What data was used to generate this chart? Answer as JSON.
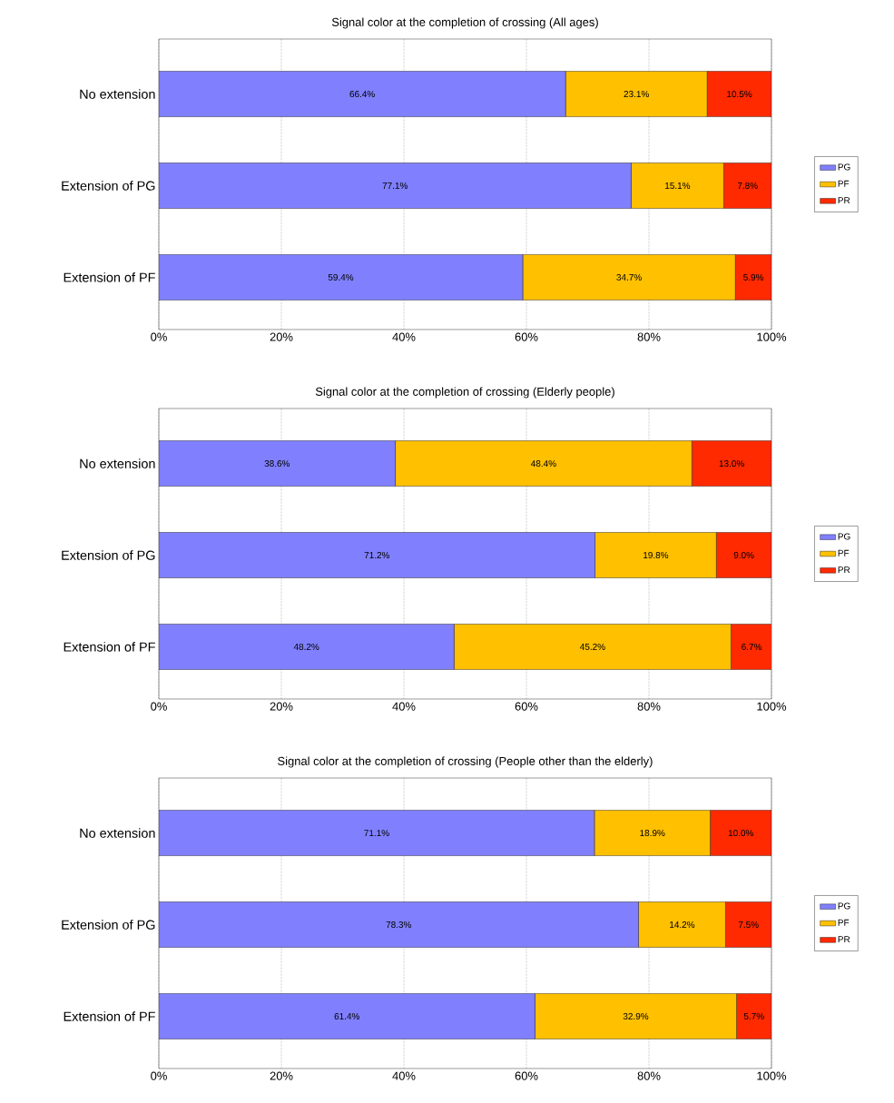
{
  "chart_data": [
    {
      "type": "bar",
      "orientation": "horizontal",
      "stacked": true,
      "title": "Signal color at the completion of crossing (All ages)",
      "categories": [
        "No extension",
        "Extension of PG",
        "Extension of PF"
      ],
      "xlim": [
        0,
        100
      ],
      "xticks": [
        {
          "value": 0,
          "label": "0%"
        },
        {
          "value": 20,
          "label": "20%"
        },
        {
          "value": 40,
          "label": "40%"
        },
        {
          "value": 60,
          "label": "60%"
        },
        {
          "value": 80,
          "label": "80%"
        },
        {
          "value": 100,
          "label": "100%"
        }
      ],
      "grid": "x",
      "legend": "right",
      "series": [
        {
          "name": "PG",
          "color": "#8080ff",
          "values": [
            66.4,
            77.1,
            59.4
          ],
          "value_labels": [
            "66.4%",
            "77.1%",
            "59.4%"
          ]
        },
        {
          "name": "PF",
          "color": "#ffc000",
          "values": [
            23.1,
            15.1,
            34.7
          ],
          "value_labels": [
            "23.1%",
            "15.1%",
            "34.7%"
          ]
        },
        {
          "name": "PR",
          "color": "#ff2a00",
          "values": [
            10.5,
            7.8,
            5.9
          ],
          "value_labels": [
            "10.5%",
            "7.8%",
            "5.9%"
          ]
        }
      ]
    },
    {
      "type": "bar",
      "orientation": "horizontal",
      "stacked": true,
      "title": "Signal color at the completion of crossing (Elderly people)",
      "categories": [
        "No extension",
        "Extension of PG",
        "Extension of PF"
      ],
      "xlim": [
        0,
        100
      ],
      "xticks": [
        {
          "value": 0,
          "label": "0%"
        },
        {
          "value": 20,
          "label": "20%"
        },
        {
          "value": 40,
          "label": "40%"
        },
        {
          "value": 60,
          "label": "60%"
        },
        {
          "value": 80,
          "label": "80%"
        },
        {
          "value": 100,
          "label": "100%"
        }
      ],
      "grid": "x",
      "legend": "right",
      "series": [
        {
          "name": "PG",
          "color": "#8080ff",
          "values": [
            38.6,
            71.2,
            48.2
          ],
          "value_labels": [
            "38.6%",
            "71.2%",
            "48.2%"
          ]
        },
        {
          "name": "PF",
          "color": "#ffc000",
          "values": [
            48.4,
            19.8,
            45.2
          ],
          "value_labels": [
            "48.4%",
            "19.8%",
            "45.2%"
          ]
        },
        {
          "name": "PR",
          "color": "#ff2a00",
          "values": [
            13.0,
            9.0,
            6.7
          ],
          "value_labels": [
            "13.0%",
            "9.0%",
            "6.7%"
          ]
        }
      ]
    },
    {
      "type": "bar",
      "orientation": "horizontal",
      "stacked": true,
      "title": "Signal color at the completion of crossing (People other than the elderly)",
      "categories": [
        "No extension",
        "Extension of PG",
        "Extension of PF"
      ],
      "xlim": [
        0,
        100
      ],
      "xticks": [
        {
          "value": 0,
          "label": "0%"
        },
        {
          "value": 20,
          "label": "20%"
        },
        {
          "value": 40,
          "label": "40%"
        },
        {
          "value": 60,
          "label": "60%"
        },
        {
          "value": 80,
          "label": "80%"
        },
        {
          "value": 100,
          "label": "100%"
        }
      ],
      "grid": "x",
      "legend": "right",
      "series": [
        {
          "name": "PG",
          "color": "#8080ff",
          "values": [
            71.1,
            78.3,
            61.4
          ],
          "value_labels": [
            "71.1%",
            "78.3%",
            "61.4%"
          ]
        },
        {
          "name": "PF",
          "color": "#ffc000",
          "values": [
            18.9,
            14.2,
            32.9
          ],
          "value_labels": [
            "18.9%",
            "14.2%",
            "32.9%"
          ]
        },
        {
          "name": "PR",
          "color": "#ff2a00",
          "values": [
            10.0,
            7.5,
            5.7
          ],
          "value_labels": [
            "10.0%",
            "7.5%",
            "5.7%"
          ]
        }
      ]
    }
  ]
}
